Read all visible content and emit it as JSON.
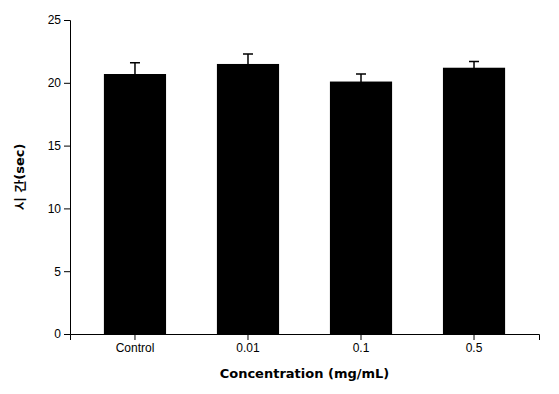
{
  "chart_data": {
    "type": "bar",
    "categories": [
      "Control",
      "0.01",
      "0.1",
      "0.5"
    ],
    "values": [
      20.7,
      21.5,
      20.1,
      21.2
    ],
    "errors": [
      0.9,
      0.8,
      0.6,
      0.5
    ],
    "color": "#000000",
    "xlabel": "Concentration (mg/mL)",
    "ylabel": "시 간(sec)",
    "ylim": [
      0,
      25
    ],
    "yticks": [
      0,
      5,
      10,
      15,
      20,
      25
    ],
    "grid": false
  }
}
